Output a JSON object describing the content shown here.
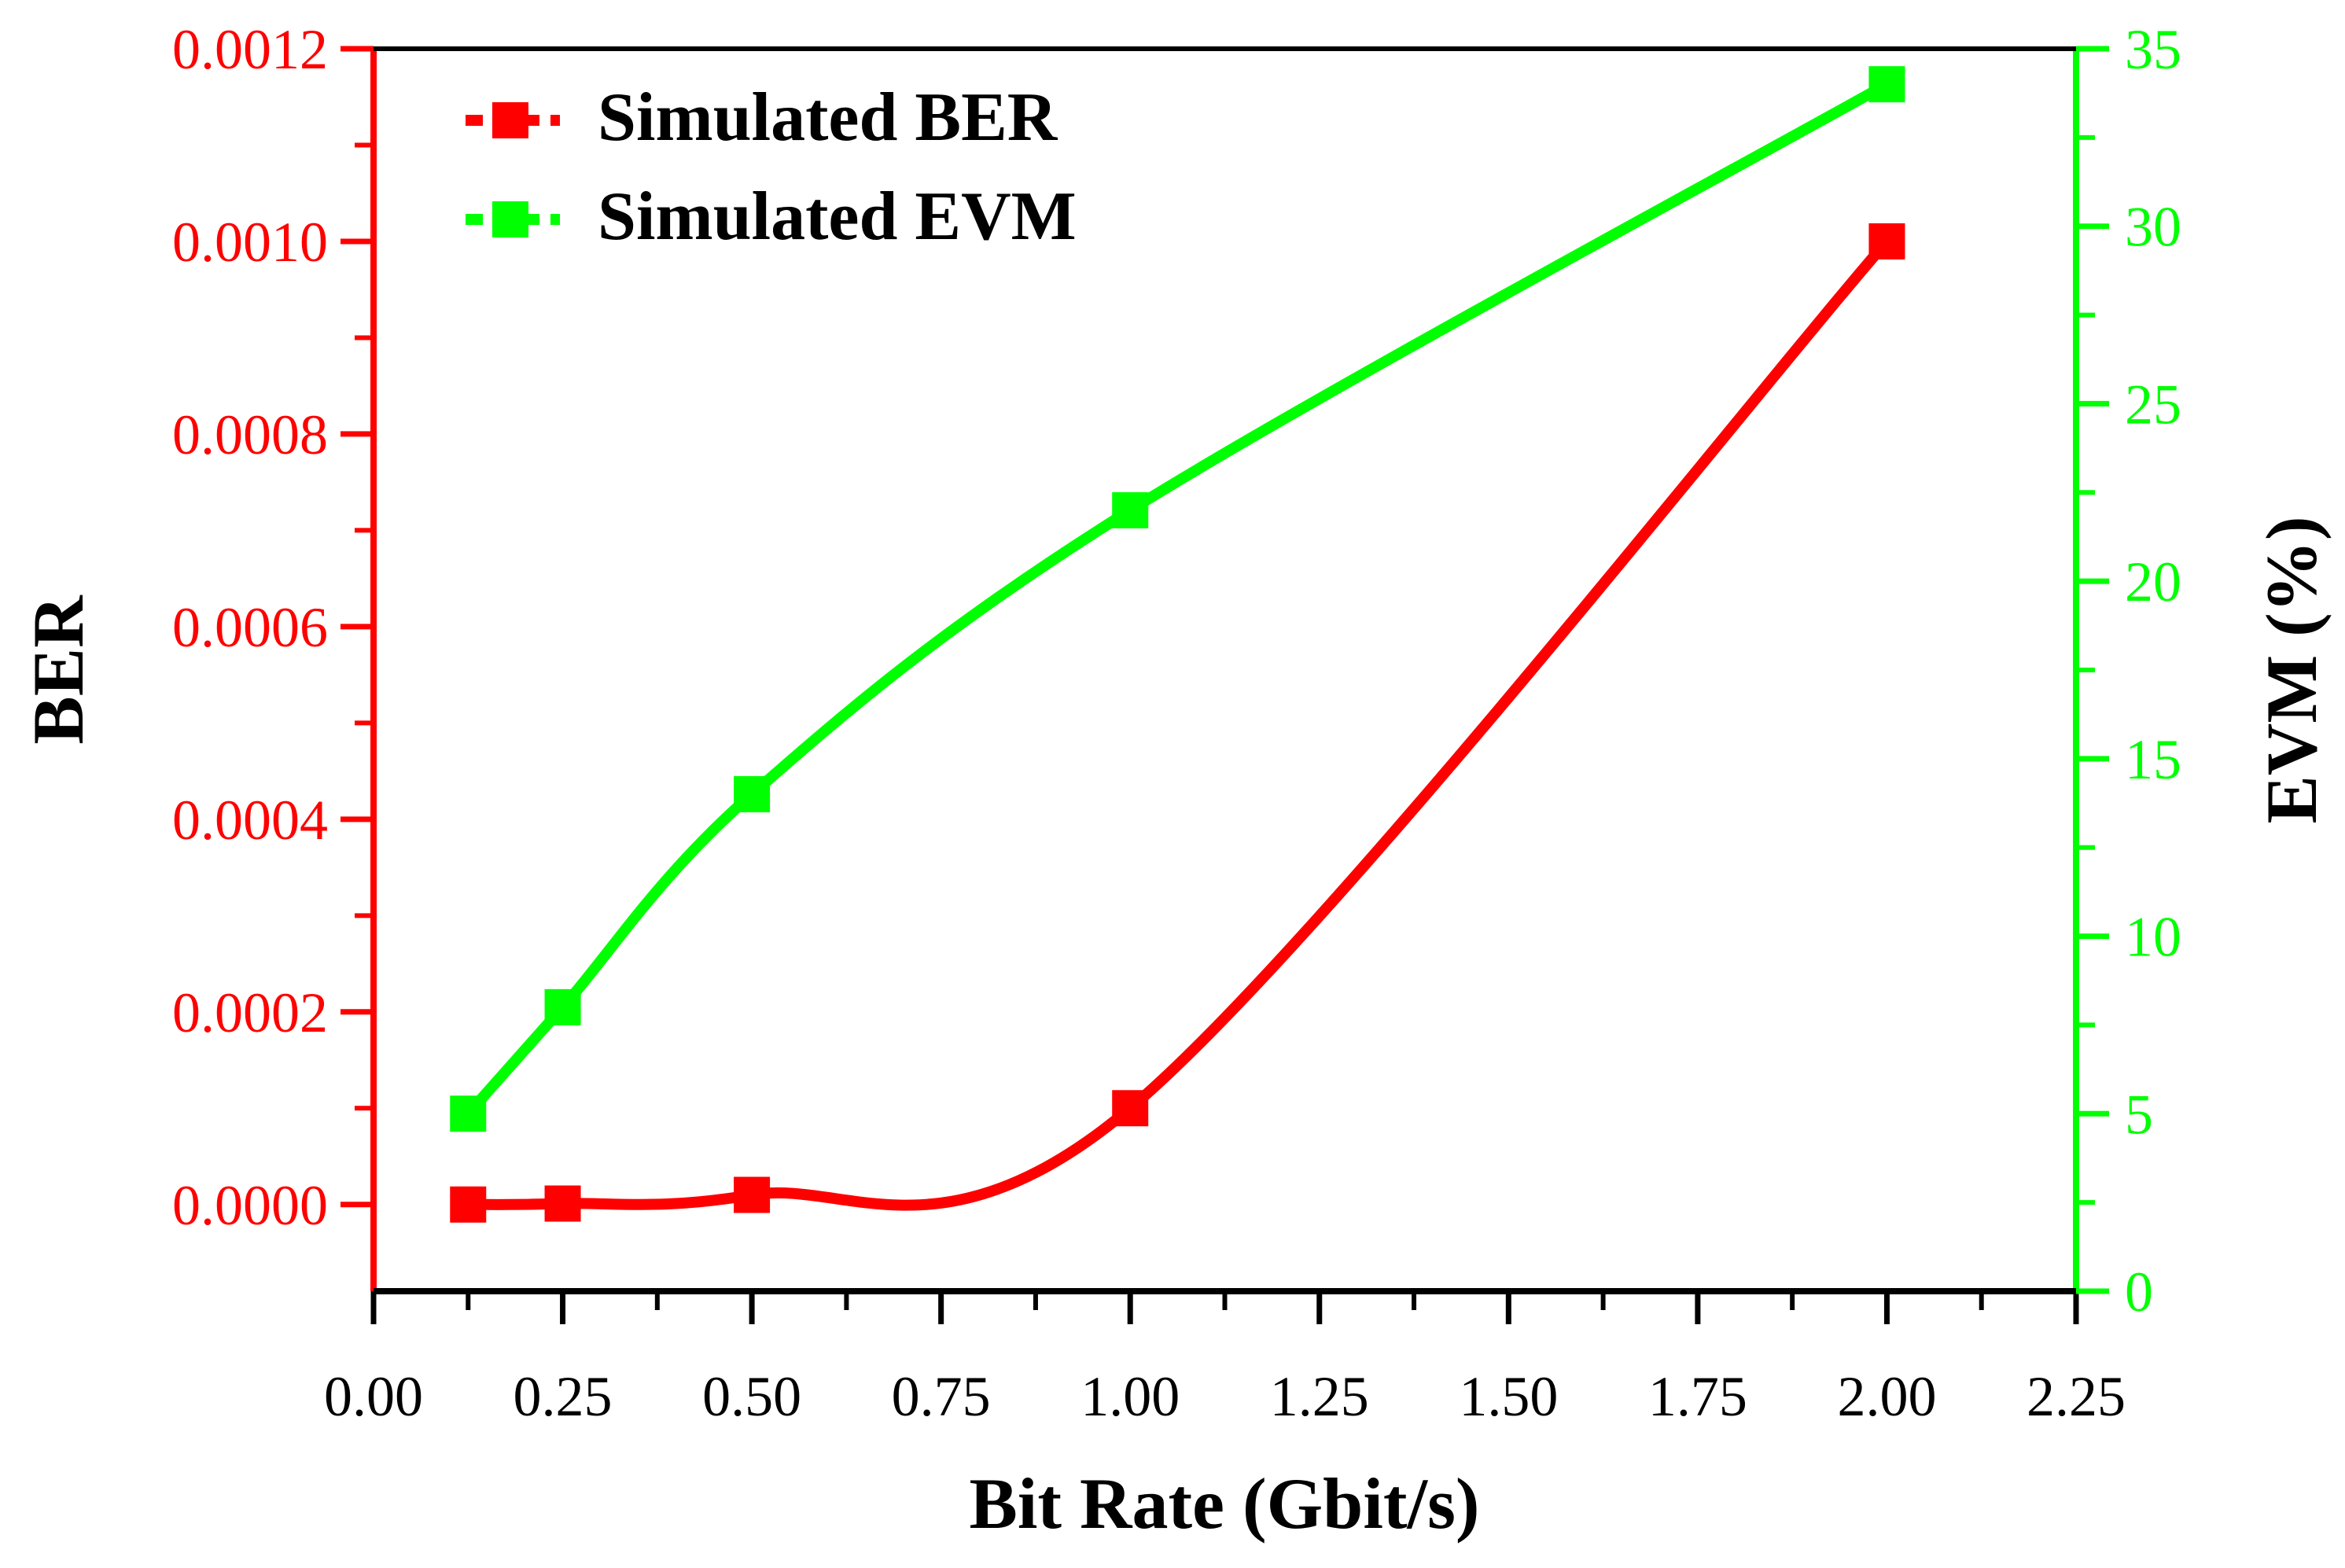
{
  "chart_data": {
    "type": "line",
    "title": "",
    "xlabel": "Bit Rate (Gbit/s)",
    "ylabel": "BER",
    "y2label": "EVM (%)",
    "xlim": [
      0.0,
      2.25
    ],
    "ylim": [
      -9e-05,
      0.0012
    ],
    "y2lim": [
      0,
      35
    ],
    "x_ticks": [
      "0.00",
      "0.25",
      "0.50",
      "0.75",
      "1.00",
      "1.25",
      "1.50",
      "1.75",
      "2.00",
      "2.25"
    ],
    "y_ticks": [
      "0.0000",
      "0.0002",
      "0.0004",
      "0.0006",
      "0.0008",
      "0.0010",
      "0.0012"
    ],
    "y2_ticks": [
      "0",
      "5",
      "10",
      "15",
      "20",
      "25",
      "30",
      "35"
    ],
    "legend_position": "top-left",
    "grid": false,
    "colors": {
      "ber": "#ff0000",
      "evm": "#00ff00",
      "axis": "#000000"
    },
    "series": [
      {
        "name": "Simulated BER",
        "axis": "left",
        "color": "#ff0000",
        "x": [
          0.125,
          0.25,
          0.5,
          1.0,
          2.0
        ],
        "values": [
          0.0,
          1e-06,
          1e-05,
          0.0001,
          0.001
        ]
      },
      {
        "name": "Simulated EVM",
        "axis": "right",
        "color": "#00ff00",
        "x": [
          0.125,
          0.25,
          0.5,
          1.0,
          2.0
        ],
        "values": [
          5,
          8,
          14,
          22,
          34
        ]
      }
    ]
  }
}
